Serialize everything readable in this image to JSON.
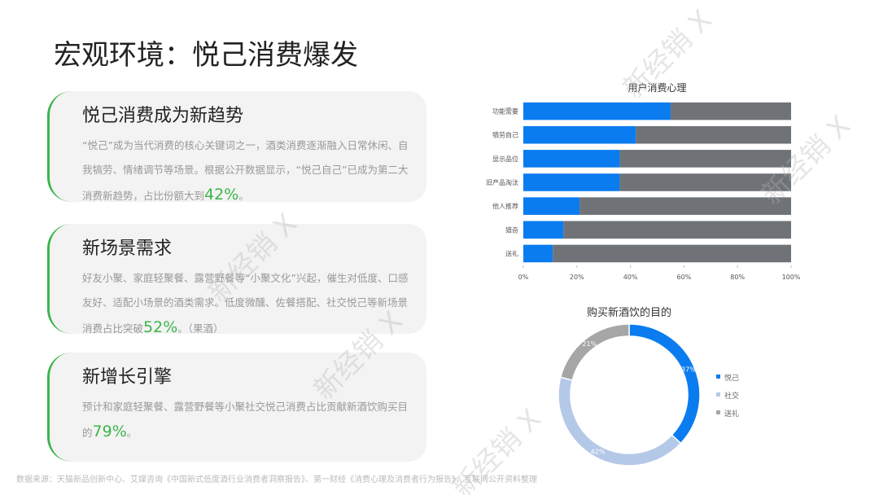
{
  "title": "宏观环境：悦己消费爆发",
  "watermark": "新经销 X",
  "cards": [
    {
      "heading": "悦己消费成为新趋势",
      "text": "“悦己”成为当代消费的核心关键词之一，酒类消费逐渐融入日常休闲、自我犒劳、情绪调节等场景。根据公开数据显示，“悦己自己”已成为第二大消费新趋势，占比份额大到",
      "highlight": "42%",
      "tail": "。"
    },
    {
      "heading": "新场景需求",
      "text": "好友小聚、家庭轻聚餐、露营野餐等“小聚文化”兴起，催生对低度、口感友好、适配小场景的酒类需求。低度微醺、佐餐搭配、社交悦己等新场景消费占比突破",
      "highlight": "52%",
      "tail": "。（果酒）"
    },
    {
      "heading": "新增长引擎",
      "text": "预计和家庭轻聚餐、露营野餐等小聚社交悦己消费占比贡献新酒饮购买目的",
      "highlight": "79%",
      "tail": "。"
    }
  ],
  "source": "数据来源：天猫新品创新中心、艾媒咨询《中国新式低度酒行业消费者洞察报告》、第一财经《消费心理及消费者行为报告》，互联网公开资料整理",
  "chart_data": [
    {
      "type": "bar",
      "orientation": "horizontal",
      "stacked": true,
      "title": "用户消费心理",
      "categories": [
        "功能需要",
        "犒劳自己",
        "显示品位",
        "旧产品淘汰",
        "他人推荐",
        "猎奇",
        "送礼"
      ],
      "series": [
        {
          "color": "#0a7cf0",
          "values": [
            55,
            42,
            36,
            36,
            21,
            15,
            11
          ]
        },
        {
          "color": "#6f7378",
          "values": [
            45,
            58,
            64,
            64,
            79,
            85,
            89
          ]
        }
      ],
      "xlim": [
        0,
        100
      ],
      "xticks": [
        {
          "value": 0,
          "label": "0%"
        },
        {
          "value": 20,
          "label": "20%"
        },
        {
          "value": 40,
          "label": "40%"
        },
        {
          "value": 60,
          "label": "60%"
        },
        {
          "value": 80,
          "label": "80%"
        },
        {
          "value": 100,
          "label": "100%"
        }
      ]
    },
    {
      "type": "pie",
      "donut": true,
      "title": "购买新酒饮的目的",
      "categories": [
        "悦己",
        "社交",
        "送礼"
      ],
      "values": [
        37,
        42,
        21
      ],
      "value_labels": [
        "37%",
        "42%",
        "21%"
      ],
      "colors": [
        "#0a7cf0",
        "#b4c8e8",
        "#a6a6a6"
      ],
      "legend": "right"
    }
  ]
}
